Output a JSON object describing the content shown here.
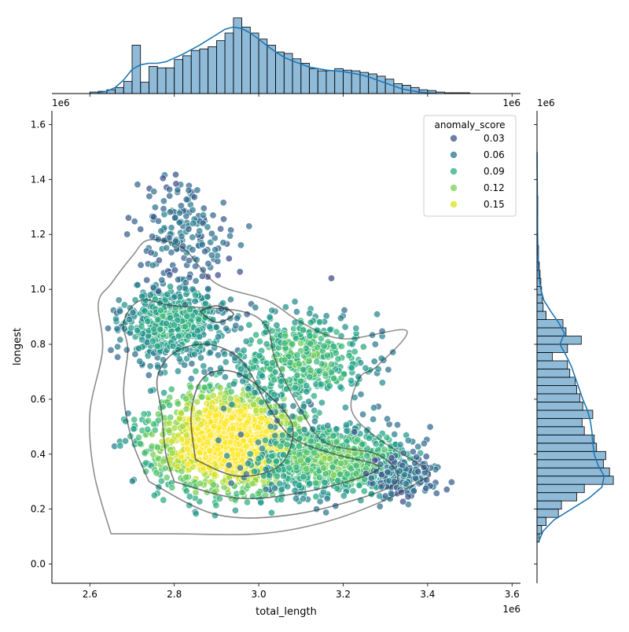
{
  "chart_data": {
    "type": "scatter",
    "subtype": "jointplot",
    "xlabel": "total_length",
    "ylabel": "longest",
    "x_offset_label": "1e6",
    "y_offset_label": "1e6",
    "top_offset_label": "1e6",
    "right_offset_label": "1e6",
    "xlim": [
      2.51,
      3.62
    ],
    "ylim": [
      -0.07,
      1.65
    ],
    "xticks": [
      2.6,
      2.8,
      3.0,
      3.2,
      3.4,
      3.6
    ],
    "xtick_labels": [
      "2.6",
      "2.8",
      "3.0",
      "3.2",
      "3.4",
      "3.6"
    ],
    "yticks": [
      0.0,
      0.2,
      0.4,
      0.6,
      0.8,
      1.0,
      1.2,
      1.4,
      1.6
    ],
    "ytick_labels": [
      "0.0",
      "0.2",
      "0.4",
      "0.6",
      "0.8",
      "1.0",
      "1.2",
      "1.4",
      "1.6"
    ],
    "grid": false,
    "legend": {
      "title": "anomaly_score",
      "position": "top-right",
      "entries": [
        {
          "label": "0.03",
          "color": "#3b528b"
        },
        {
          "label": "0.06",
          "color": "#2c728e"
        },
        {
          "label": "0.09",
          "color": "#28ae80"
        },
        {
          "label": "0.12",
          "color": "#7ad151"
        },
        {
          "label": "0.15",
          "color": "#d8e219"
        }
      ]
    },
    "colormap": "viridis",
    "color_range": [
      0.0,
      0.17
    ],
    "hist_color": "#1f77b4",
    "kde_contour_color": "#333333",
    "marginal_x": {
      "bin_edges": [
        2.6,
        2.62,
        2.64,
        2.66,
        2.68,
        2.7,
        2.72,
        2.74,
        2.76,
        2.78,
        2.8,
        2.82,
        2.84,
        2.86,
        2.88,
        2.9,
        2.92,
        2.94,
        2.96,
        2.98,
        3.0,
        3.02,
        3.04,
        3.06,
        3.08,
        3.1,
        3.12,
        3.14,
        3.16,
        3.18,
        3.2,
        3.22,
        3.24,
        3.26,
        3.28,
        3.3,
        3.32,
        3.34,
        3.36,
        3.38,
        3.4,
        3.42,
        3.44,
        3.46,
        3.48,
        3.5,
        3.52
      ],
      "counts": [
        2,
        3,
        5,
        8,
        16,
        64,
        15,
        36,
        34,
        34,
        45,
        50,
        57,
        59,
        62,
        70,
        80,
        100,
        88,
        80,
        72,
        64,
        55,
        53,
        46,
        40,
        33,
        30,
        30,
        33,
        31,
        30,
        28,
        26,
        23,
        19,
        13,
        11,
        8,
        5,
        4,
        2,
        1,
        1,
        1,
        0
      ],
      "kde_y": [
        1,
        3,
        8,
        18,
        32,
        38,
        40,
        40,
        42,
        47,
        52,
        58,
        64,
        71,
        78,
        85,
        88,
        86,
        80,
        72,
        63,
        55,
        48,
        43,
        39,
        35,
        33,
        31,
        30,
        29,
        27,
        25,
        22,
        18,
        14,
        10,
        6,
        4,
        2,
        1,
        0.5
      ],
      "kde_x": [
        2.62,
        2.64,
        2.66,
        2.68,
        2.7,
        2.72,
        2.74,
        2.76,
        2.78,
        2.8,
        2.82,
        2.84,
        2.86,
        2.88,
        2.9,
        2.92,
        2.94,
        2.96,
        2.98,
        3.0,
        3.02,
        3.04,
        3.06,
        3.08,
        3.1,
        3.12,
        3.14,
        3.16,
        3.18,
        3.2,
        3.22,
        3.24,
        3.26,
        3.28,
        3.3,
        3.32,
        3.34,
        3.36,
        3.38,
        3.4,
        3.42
      ]
    },
    "marginal_y": {
      "bin_edges": [
        0.08,
        0.11,
        0.14,
        0.17,
        0.2,
        0.23,
        0.26,
        0.29,
        0.32,
        0.35,
        0.38,
        0.41,
        0.44,
        0.47,
        0.5,
        0.53,
        0.56,
        0.59,
        0.62,
        0.65,
        0.68,
        0.71,
        0.74,
        0.77,
        0.8,
        0.83,
        0.86,
        0.89,
        0.92,
        0.95,
        0.98,
        1.01,
        1.04,
        1.07,
        1.1,
        1.13,
        1.16,
        1.19,
        1.22,
        1.25,
        1.28,
        1.31,
        1.34,
        1.37,
        1.4,
        1.43,
        1.46,
        1.49
      ],
      "counts": [
        3,
        6,
        12,
        28,
        32,
        52,
        62,
        100,
        95,
        87,
        90,
        78,
        75,
        62,
        59,
        73,
        60,
        56,
        52,
        50,
        43,
        40,
        20,
        40,
        58,
        38,
        34,
        12,
        8,
        7,
        6,
        5,
        4,
        3,
        2,
        2,
        1,
        1,
        1,
        1,
        1,
        1,
        0,
        0,
        0,
        0,
        0
      ],
      "kde_y": [
        0.08,
        0.12,
        0.16,
        0.2,
        0.24,
        0.28,
        0.32,
        0.36,
        0.4,
        0.44,
        0.48,
        0.52,
        0.56,
        0.6,
        0.64,
        0.68,
        0.72,
        0.76,
        0.8,
        0.84,
        0.88,
        0.92,
        0.96,
        1.0,
        1.04,
        1.08,
        1.12,
        1.16,
        1.2,
        1.3,
        1.4,
        1.5
      ],
      "kde_x": [
        2,
        8,
        22,
        45,
        68,
        85,
        88,
        80,
        75,
        73,
        72,
        70,
        66,
        60,
        55,
        50,
        45,
        38,
        30,
        36,
        28,
        18,
        9,
        5,
        3,
        2,
        1.5,
        1,
        0.8,
        0.5,
        0.3,
        0.1
      ]
    },
    "kde_contours": [
      [
        [
          2.65,
          0.11
        ],
        [
          2.8,
          0.11
        ],
        [
          3.0,
          0.11
        ],
        [
          3.15,
          0.15
        ],
        [
          3.28,
          0.22
        ],
        [
          3.38,
          0.3
        ],
        [
          3.4,
          0.34
        ],
        [
          3.28,
          0.46
        ],
        [
          3.22,
          0.56
        ],
        [
          3.24,
          0.68
        ],
        [
          3.28,
          0.72
        ],
        [
          3.35,
          0.85
        ],
        [
          3.2,
          0.82
        ],
        [
          3.1,
          0.88
        ],
        [
          3.02,
          0.96
        ],
        [
          2.9,
          1.02
        ],
        [
          2.82,
          1.15
        ],
        [
          2.74,
          1.18
        ],
        [
          2.7,
          1.12
        ],
        [
          2.65,
          1.02
        ],
        [
          2.62,
          0.95
        ],
        [
          2.63,
          0.78
        ],
        [
          2.6,
          0.55
        ],
        [
          2.61,
          0.33
        ],
        [
          2.65,
          0.11
        ]
      ],
      [
        [
          2.74,
          0.3
        ],
        [
          2.9,
          0.18
        ],
        [
          3.08,
          0.18
        ],
        [
          3.28,
          0.26
        ],
        [
          3.33,
          0.32
        ],
        [
          3.28,
          0.4
        ],
        [
          3.16,
          0.44
        ],
        [
          3.1,
          0.56
        ],
        [
          3.04,
          0.74
        ],
        [
          3.02,
          0.86
        ],
        [
          2.96,
          0.92
        ],
        [
          2.8,
          0.94
        ],
        [
          2.72,
          0.96
        ],
        [
          2.68,
          0.88
        ],
        [
          2.69,
          0.78
        ],
        [
          2.68,
          0.62
        ],
        [
          2.7,
          0.45
        ],
        [
          2.74,
          0.3
        ]
      ],
      [
        [
          2.8,
          0.3
        ],
        [
          2.95,
          0.24
        ],
        [
          3.1,
          0.26
        ],
        [
          3.25,
          0.32
        ],
        [
          3.28,
          0.36
        ],
        [
          3.18,
          0.4
        ],
        [
          3.08,
          0.46
        ],
        [
          3.02,
          0.58
        ],
        [
          2.96,
          0.74
        ],
        [
          2.88,
          0.8
        ],
        [
          2.8,
          0.77
        ],
        [
          2.76,
          0.68
        ],
        [
          2.77,
          0.55
        ],
        [
          2.78,
          0.4
        ],
        [
          2.8,
          0.3
        ]
      ],
      [
        [
          2.85,
          0.38
        ],
        [
          2.95,
          0.32
        ],
        [
          3.05,
          0.36
        ],
        [
          3.08,
          0.5
        ],
        [
          3.02,
          0.62
        ],
        [
          2.94,
          0.7
        ],
        [
          2.87,
          0.68
        ],
        [
          2.84,
          0.55
        ],
        [
          2.85,
          0.38
        ]
      ],
      [
        [
          2.86,
          0.92
        ],
        [
          2.9,
          0.88
        ],
        [
          2.94,
          0.91
        ],
        [
          2.9,
          0.94
        ],
        [
          2.86,
          0.92
        ]
      ]
    ],
    "points_summary": "several thousand scattered points, coloured by anomaly_score"
  }
}
